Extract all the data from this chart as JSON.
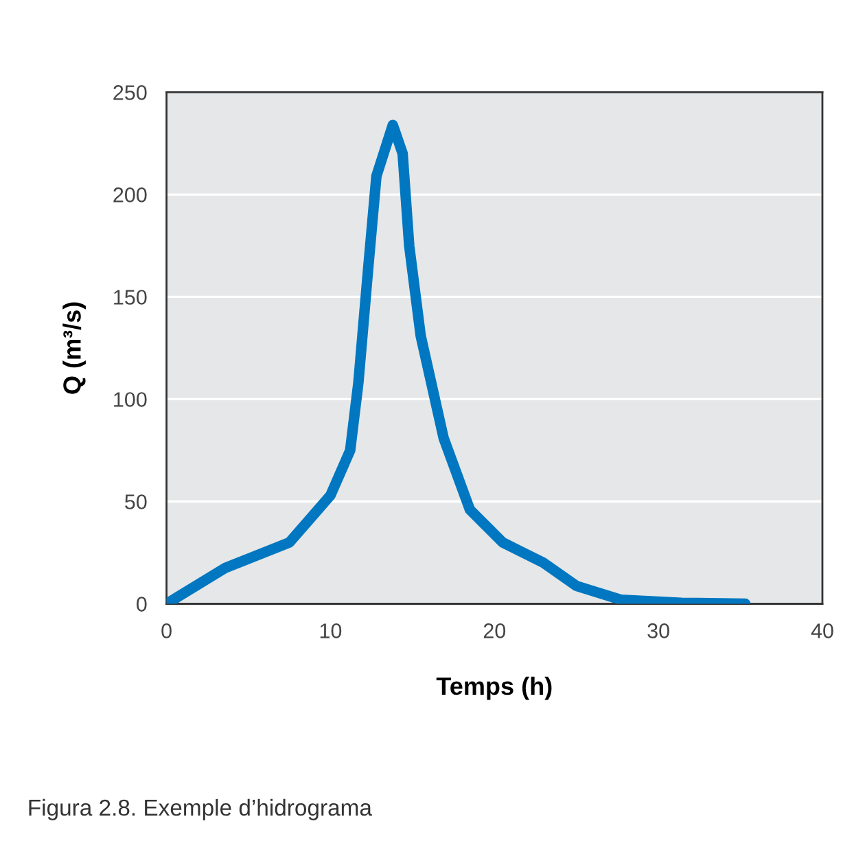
{
  "chart_data": {
    "type": "line",
    "xlabel": "Temps (h)",
    "ylabel": "Q (m³/s)",
    "x": [
      0,
      3.6,
      7.5,
      10.0,
      11.2,
      11.7,
      12.3,
      12.8,
      13.8,
      14.4,
      14.8,
      15.5,
      16.9,
      18.5,
      20.5,
      23.0,
      25.0,
      27.7,
      31.4,
      35.3
    ],
    "series": [
      {
        "color": "#0077c0",
        "values": [
          0,
          17.6,
          30,
          53,
          75,
          108,
          164,
          209,
          234,
          220,
          175,
          131,
          81,
          46,
          30,
          20,
          8.7,
          2,
          0.5,
          0
        ]
      }
    ],
    "xlim": [
      0,
      40
    ],
    "ylim": [
      0,
      250
    ],
    "xticks": [
      0,
      10,
      20,
      30,
      40
    ],
    "yticks": [
      0,
      50,
      100,
      150,
      200,
      250
    ],
    "grid": "y",
    "marker": "none",
    "line_style": "solid",
    "annotations": [
      "Figura 2.8. Exemple d’hidrograma"
    ]
  }
}
